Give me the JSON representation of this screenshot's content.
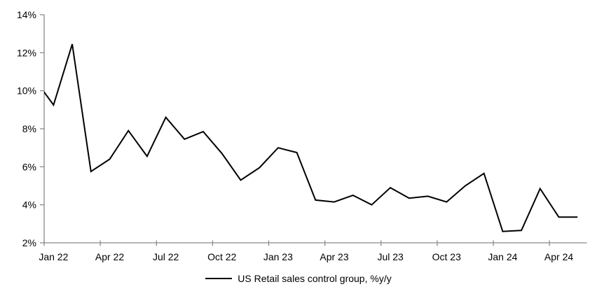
{
  "chart_data": {
    "type": "line",
    "title": "",
    "legend": "US Retail sales control group, %y/y",
    "legend_position": "bottom",
    "grid": false,
    "ylim": [
      2,
      14
    ],
    "y_axis": {
      "min": 2,
      "max": 14,
      "step": 2,
      "suffix": "%",
      "tick_labels": [
        "2%",
        "4%",
        "6%",
        "8%",
        "10%",
        "12%",
        "14%"
      ]
    },
    "x_tick_labels": [
      "Jan 22",
      "Apr 22",
      "Jul 22",
      "Oct 22",
      "Jan 23",
      "Apr 23",
      "Jul 23",
      "Oct 23",
      "Jan 24",
      "Apr 24"
    ],
    "series": [
      {
        "name": "US Retail sales control group, %y/y",
        "color": "#000000",
        "note_first_point_clipped_at_left_axis": true,
        "x": [
          "Dec 21",
          "Jan 22",
          "Feb 22",
          "Mar 22",
          "Apr 22",
          "May 22",
          "Jun 22",
          "Jul 22",
          "Aug 22",
          "Sep 22",
          "Oct 22",
          "Nov 22",
          "Dec 22",
          "Jan 23",
          "Feb 23",
          "Mar 23",
          "Apr 23",
          "May 23",
          "Jun 23",
          "Jul 23",
          "Aug 23",
          "Sep 23",
          "Oct 23",
          "Nov 23",
          "Dec 23",
          "Jan 24",
          "Feb 24",
          "Mar 24",
          "Apr 24",
          "May 24"
        ],
        "values": [
          10.6,
          9.25,
          12.45,
          5.75,
          6.4,
          7.9,
          6.55,
          8.6,
          7.45,
          7.85,
          6.7,
          5.3,
          5.95,
          7.0,
          6.75,
          4.25,
          4.15,
          4.5,
          4.0,
          4.9,
          4.35,
          4.45,
          4.15,
          5.0,
          5.65,
          2.6,
          2.65,
          4.85,
          3.35,
          3.35
        ]
      }
    ],
    "colors": {
      "line": "#000000",
      "axis": "#8c8c8c",
      "label": "#000000",
      "background": "#ffffff"
    }
  }
}
